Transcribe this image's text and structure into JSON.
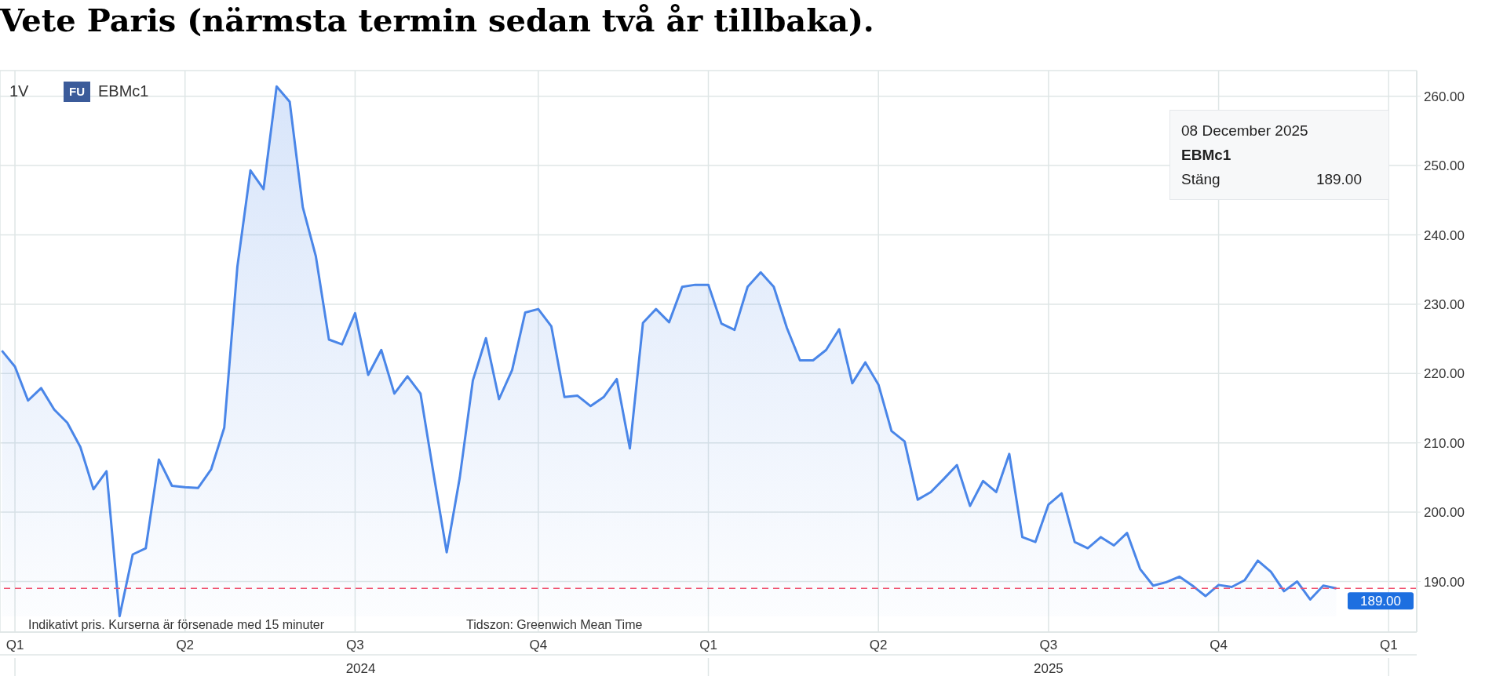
{
  "chart_data": {
    "type": "area",
    "title": "Vete Paris (närmsta termin sedan två år tillbaka).",
    "x": [
      "2023-12-25",
      "2024-01-01",
      "2024-01-08",
      "2024-01-15",
      "2024-01-22",
      "2024-01-29",
      "2024-02-05",
      "2024-02-12",
      "2024-02-19",
      "2024-02-26",
      "2024-03-04",
      "2024-03-11",
      "2024-03-18",
      "2024-03-25",
      "2024-04-01",
      "2024-04-08",
      "2024-04-15",
      "2024-04-22",
      "2024-04-29",
      "2024-05-06",
      "2024-05-13",
      "2024-05-20",
      "2024-05-27",
      "2024-06-03",
      "2024-06-10",
      "2024-06-17",
      "2024-06-24",
      "2024-07-01",
      "2024-07-08",
      "2024-07-15",
      "2024-07-22",
      "2024-07-29",
      "2024-08-05",
      "2024-08-12",
      "2024-08-19",
      "2024-08-26",
      "2024-09-02",
      "2024-09-09",
      "2024-09-16",
      "2024-09-23",
      "2024-09-30",
      "2024-10-07",
      "2024-10-14",
      "2024-10-21",
      "2024-10-28",
      "2024-11-04",
      "2024-11-11",
      "2024-11-18",
      "2024-11-25",
      "2024-12-02",
      "2024-12-09",
      "2024-12-16",
      "2024-12-23",
      "2024-12-30",
      "2025-01-06",
      "2025-01-13",
      "2025-01-20",
      "2025-01-27",
      "2025-02-03",
      "2025-02-10",
      "2025-02-17",
      "2025-02-24",
      "2025-03-03",
      "2025-03-10",
      "2025-03-17",
      "2025-03-24",
      "2025-03-31",
      "2025-04-07",
      "2025-04-14",
      "2025-04-21",
      "2025-04-28",
      "2025-05-05",
      "2025-05-12",
      "2025-05-19",
      "2025-05-26",
      "2025-06-02",
      "2025-06-09",
      "2025-06-16",
      "2025-06-23",
      "2025-06-30",
      "2025-07-07",
      "2025-07-14",
      "2025-07-21",
      "2025-07-28",
      "2025-08-04",
      "2025-08-11",
      "2025-08-18",
      "2025-08-25",
      "2025-09-01",
      "2025-09-08",
      "2025-09-15",
      "2025-09-22",
      "2025-09-29",
      "2025-10-06",
      "2025-10-13",
      "2025-10-20",
      "2025-10-27",
      "2025-11-03",
      "2025-11-10",
      "2025-11-17",
      "2025-11-24",
      "2025-12-01",
      "2025-12-08"
    ],
    "values": [
      223.3,
      221.0,
      216.1,
      217.9,
      214.8,
      212.9,
      209.4,
      203.3,
      205.9,
      185.0,
      193.9,
      194.8,
      207.6,
      203.8,
      203.6,
      203.5,
      206.2,
      212.2,
      235.4,
      249.3,
      246.6,
      261.4,
      259.2,
      244.0,
      236.9,
      224.9,
      224.2,
      228.7,
      219.8,
      223.4,
      217.1,
      219.6,
      217.1,
      205.5,
      194.2,
      205.0,
      219.0,
      225.1,
      216.3,
      220.5,
      228.8,
      229.3,
      226.8,
      216.6,
      216.8,
      215.3,
      216.6,
      219.2,
      209.2,
      227.3,
      229.3,
      227.4,
      232.5,
      232.8,
      232.8,
      227.2,
      226.3,
      232.5,
      234.6,
      232.5,
      226.6,
      221.9,
      221.9,
      223.4,
      226.4,
      218.6,
      221.6,
      218.4,
      211.7,
      210.2,
      201.8,
      202.9,
      204.8,
      206.8,
      200.9,
      204.5,
      202.9,
      208.4,
      196.4,
      195.7,
      201.1,
      202.7,
      195.7,
      194.8,
      196.4,
      195.2,
      197.0,
      191.8,
      189.4,
      189.9,
      190.7,
      189.4,
      187.9,
      189.5,
      189.2,
      190.2,
      193.0,
      191.4,
      188.6,
      190.0,
      187.4,
      189.4,
      189.0
    ],
    "color": "#4a86e8",
    "xlim": [
      "2023-12-24",
      "2026-01-20"
    ],
    "xticks": [
      {
        "value": "2024-01-01",
        "label": "Q1"
      },
      {
        "value": "2024-04-01",
        "label": "Q2"
      },
      {
        "value": "2024-07-01",
        "label": "Q3"
      },
      {
        "value": "2024-10-07",
        "label": "Q4"
      },
      {
        "value": "2025-01-06",
        "label": "Q1"
      },
      {
        "value": "2025-04-07",
        "label": "Q2"
      },
      {
        "value": "2025-07-07",
        "label": "Q3"
      },
      {
        "value": "2025-10-06",
        "label": "Q4"
      },
      {
        "value": "2026-01-05",
        "label": "Q1"
      }
    ],
    "x2lim": [
      "2023-12-24",
      "2026-01-20"
    ],
    "x2ticks": [
      {
        "value": "2024-01-01",
        "label": null
      },
      {
        "value": "2024-07-04",
        "label": "2024"
      },
      {
        "value": "2025-01-06",
        "label": null
      },
      {
        "value": "2025-07-07",
        "label": "2025"
      },
      {
        "value": "2026-01-05",
        "label": null
      }
    ],
    "ylim": [
      182.7,
      263.7
    ],
    "yticks": [
      {
        "value": 190,
        "label": "190.00"
      },
      {
        "value": 200,
        "label": "200.00"
      },
      {
        "value": 210,
        "label": "210.00"
      },
      {
        "value": 220,
        "label": "220.00"
      },
      {
        "value": 230,
        "label": "230.00"
      },
      {
        "value": 240,
        "label": "240.00"
      },
      {
        "value": 250,
        "label": "250.00"
      },
      {
        "value": 260,
        "label": "260.00"
      }
    ],
    "grid": true,
    "ref_lines": [
      {
        "axis": "y",
        "value": 189,
        "label": "189.00",
        "color": "#f0506e",
        "line_style": "dashed"
      }
    ],
    "annotations": [
      "1V",
      "FU",
      "EBMc1",
      "08 December 2025",
      "EBMc1",
      "Stäng",
      "189.00",
      "Indikativt pris. Kurserna är försenade med 15 minuter",
      "Tidszon: Greenwich Mean Time"
    ]
  }
}
